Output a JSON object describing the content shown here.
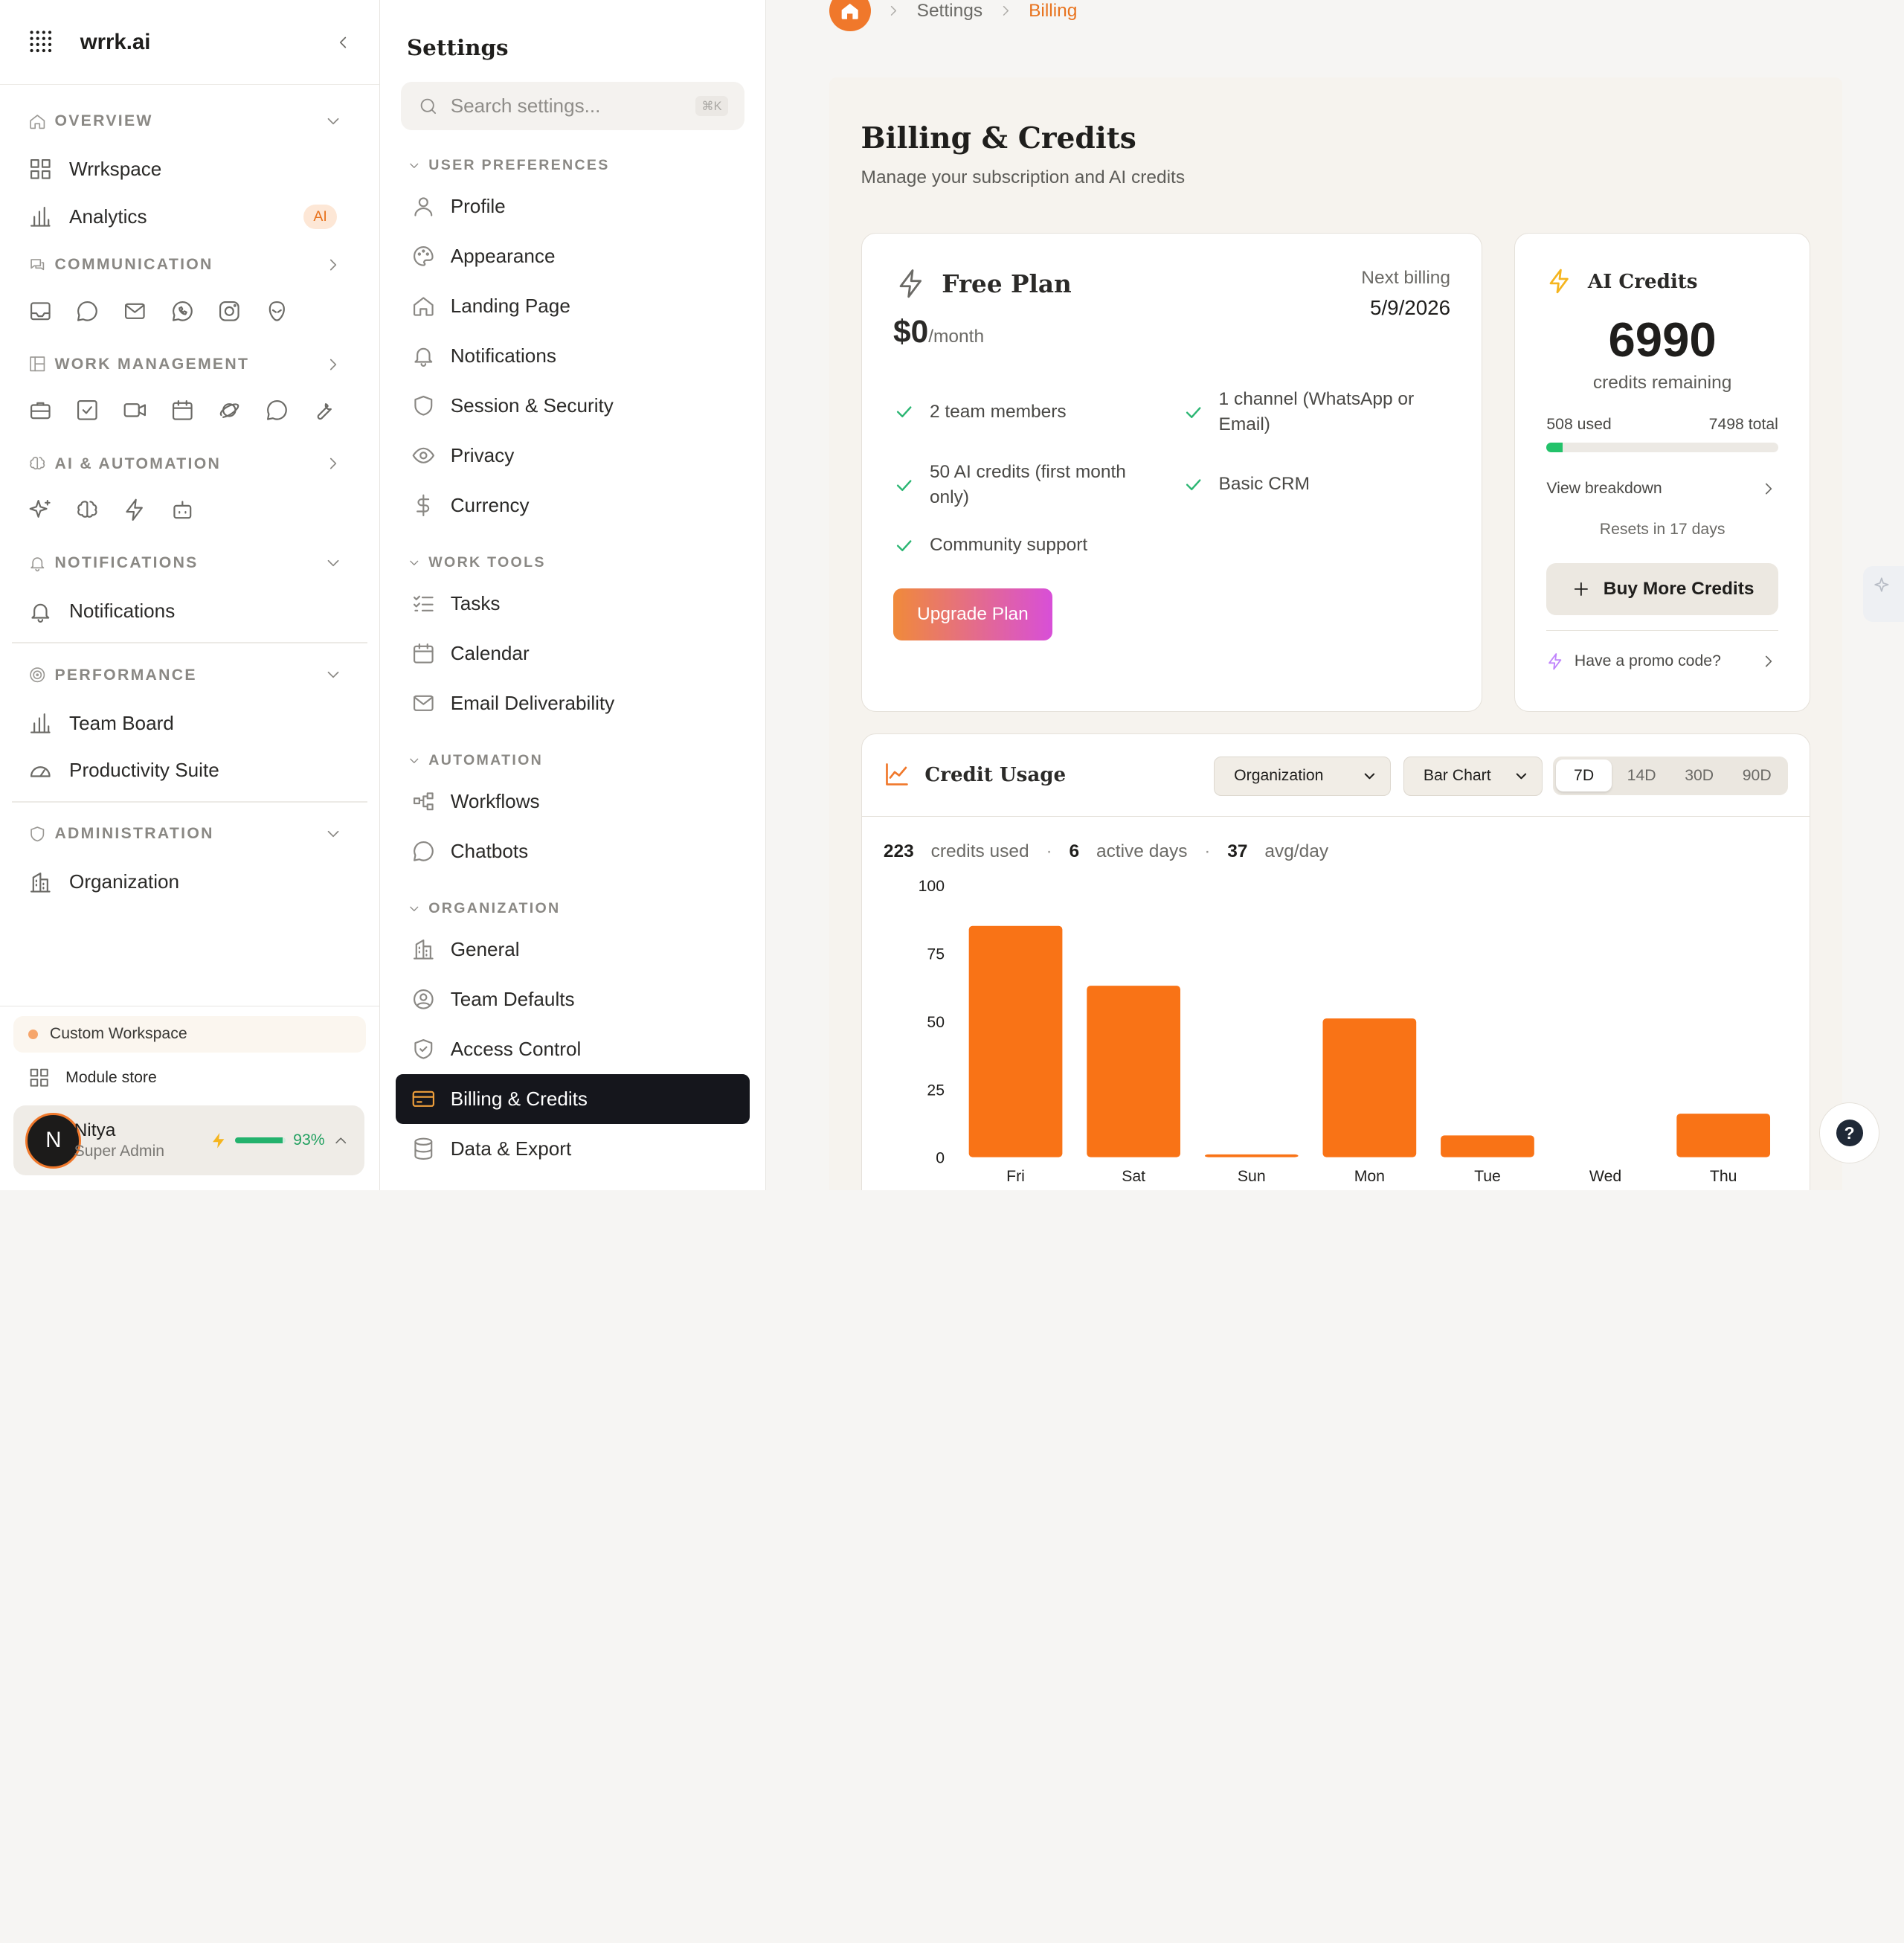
{
  "app": {
    "name": "wrrk.ai"
  },
  "sidebar": {
    "overview": {
      "label": "OVERVIEW",
      "items": [
        {
          "label": "Wrrkspace"
        },
        {
          "label": "Analytics",
          "badge": "AI"
        }
      ]
    },
    "communication": {
      "label": "COMMUNICATION",
      "icons": [
        "inbox-icon",
        "chat-icon",
        "mail-icon",
        "whatsapp-icon",
        "instagram-icon",
        "alien-icon"
      ]
    },
    "work_management": {
      "label": "WORK MANAGEMENT",
      "icons": [
        "briefcase-icon",
        "checkbox-icon",
        "video-icon",
        "calendar-icon",
        "planet-icon",
        "message-icon",
        "wrench-icon"
      ]
    },
    "ai_automation": {
      "label": "AI & AUTOMATION",
      "icons": [
        "sparkles-icon",
        "brain-icon",
        "bolt-icon",
        "bot-icon"
      ]
    },
    "notifications": {
      "label": "NOTIFICATIONS",
      "items": [
        {
          "label": "Notifications"
        }
      ]
    },
    "performance": {
      "label": "PERFORMANCE",
      "items": [
        {
          "label": "Team Board"
        },
        {
          "label": "Productivity Suite"
        }
      ]
    },
    "administration": {
      "label": "ADMINISTRATION",
      "items": [
        {
          "label": "Organization"
        }
      ]
    },
    "custom_workspace": "Custom Workspace",
    "module_store": "Module store",
    "user": {
      "initial": "N",
      "name": "Nitya",
      "role": "Super Admin",
      "energy": "93%",
      "energy_level": 0.93
    }
  },
  "settings": {
    "title": "Settings",
    "search_placeholder": "Search settings...",
    "search_kbd": "⌘K",
    "user_preferences": {
      "label": "USER PREFERENCES",
      "items": [
        "Profile",
        "Appearance",
        "Landing Page",
        "Notifications",
        "Session & Security",
        "Privacy",
        "Currency"
      ]
    },
    "work_tools": {
      "label": "WORK TOOLS",
      "items": [
        "Tasks",
        "Calendar",
        "Email Deliverability"
      ]
    },
    "automation": {
      "label": "AUTOMATION",
      "items": [
        "Workflows",
        "Chatbots"
      ]
    },
    "organization": {
      "label": "ORGANIZATION",
      "items": [
        "General",
        "Team Defaults",
        "Access Control",
        "Billing & Credits",
        "Data & Export"
      ]
    }
  },
  "breadcrumb": {
    "settings": "Settings",
    "current": "Billing"
  },
  "page": {
    "title": "Billing & Credits",
    "subtitle": "Manage your subscription and AI credits"
  },
  "plan": {
    "name": "Free Plan",
    "price": "$0",
    "period": "/month",
    "next_billing_label": "Next billing",
    "next_billing_date": "5/9/2026",
    "features": [
      "2 team members",
      "1 channel (WhatsApp or Email)",
      "50 AI credits (first month only)",
      "Basic CRM",
      "Community support"
    ],
    "upgrade_label": "Upgrade Plan"
  },
  "ai_credits": {
    "title": "AI Credits",
    "remaining": "6990",
    "remaining_label": "credits remaining",
    "used": "508 used",
    "total": "7498 total",
    "used_fraction": 0.068,
    "view_breakdown": "View breakdown",
    "resets": "Resets in 17 days",
    "buy_label": "Buy More Credits",
    "promo": "Have a promo code?"
  },
  "usage": {
    "title": "Credit Usage",
    "group_select": "Organization",
    "chart_select": "Bar Chart",
    "ranges": [
      "7D",
      "14D",
      "30D",
      "90D"
    ],
    "active_range": "7D",
    "credits_used": "223",
    "credits_used_label": "credits used",
    "active_days": "6",
    "active_days_label": "active days",
    "avg": "37",
    "avg_label": "avg/day"
  },
  "chart_data": {
    "type": "bar",
    "categories": [
      "Fri",
      "Sat",
      "Sun",
      "Mon",
      "Tue",
      "Wed",
      "Thu"
    ],
    "values": [
      85,
      63,
      1,
      51,
      8,
      0,
      16
    ],
    "yticks": [
      0,
      25,
      50,
      75,
      100
    ],
    "ylim": [
      0,
      100
    ],
    "color": "#f97316",
    "grid": false
  },
  "colors": {
    "accent": "#f0782b",
    "success": "#23c26a",
    "dark": "#15161c"
  }
}
